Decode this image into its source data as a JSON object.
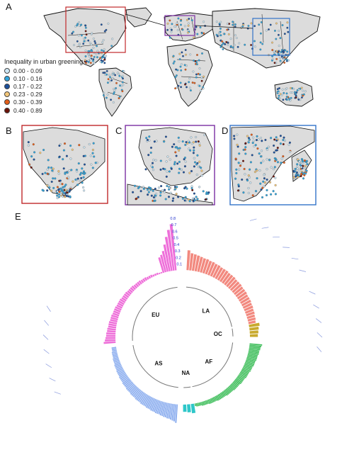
{
  "panel_labels": {
    "A": "A",
    "B": "B",
    "C": "C",
    "D": "D",
    "E": "E"
  },
  "inset_labels": {
    "b": "b",
    "c": "c",
    "d": "d"
  },
  "legend": {
    "title": "Inequality in urban greening",
    "items": [
      {
        "label": "0.00 - 0.09",
        "color": "#cfe8f6"
      },
      {
        "label": "0.10 - 0.16",
        "color": "#2fa4dc"
      },
      {
        "label": "0.17 - 0.22",
        "color": "#1b4f9b"
      },
      {
        "label": "0.23 - 0.29",
        "color": "#f3c77a"
      },
      {
        "label": "0.30 - 0.39",
        "color": "#e45d18"
      },
      {
        "label": "0.40 - 0.89",
        "color": "#6b1208"
      }
    ]
  },
  "chart_data": {
    "type": "bar",
    "layout": "circular",
    "title": "",
    "radial_ticks": [
      "0.1",
      "0.2",
      "0.3",
      "0.4",
      "0.5",
      "0.6",
      "0.7",
      "0.8"
    ],
    "ylim": [
      0,
      0.8
    ],
    "series": [
      {
        "name": "EU",
        "color": "#ee6fd9",
        "values": [
          0.18,
          0.16,
          0.15,
          0.14,
          0.14,
          0.13,
          0.13,
          0.12,
          0.12,
          0.12,
          0.11,
          0.11,
          0.11,
          0.1,
          0.1,
          0.1,
          0.1,
          0.09,
          0.09,
          0.09,
          0.09,
          0.08,
          0.08,
          0.08,
          0.08,
          0.07,
          0.07,
          0.07,
          0.07,
          0.06,
          0.06,
          0.06,
          0.06,
          0.05,
          0.05,
          0.05,
          0.04,
          0.04,
          0.04,
          0.03,
          0.03,
          0.03,
          0.02,
          0.02,
          0.24,
          0.27,
          0.32,
          0.41,
          0.52,
          0.62,
          0.7
        ]
      },
      {
        "name": "LA",
        "color": "#f2897f",
        "values": [
          0.3,
          0.26,
          0.25,
          0.24,
          0.23,
          0.22,
          0.22,
          0.21,
          0.21,
          0.2,
          0.2,
          0.19,
          0.19,
          0.19,
          0.18,
          0.18,
          0.18,
          0.17,
          0.17,
          0.17,
          0.16,
          0.16,
          0.16,
          0.15,
          0.15,
          0.15,
          0.14,
          0.14,
          0.13,
          0.13,
          0.12,
          0.12,
          0.11
        ]
      },
      {
        "name": "OC",
        "color": "#c8aa2e",
        "values": [
          0.16,
          0.14,
          0.13,
          0.12
        ]
      },
      {
        "name": "AF",
        "color": "#3fbe5b",
        "values": [
          0.19,
          0.18,
          0.17,
          0.17,
          0.16,
          0.16,
          0.16,
          0.15,
          0.15,
          0.15,
          0.15,
          0.14,
          0.14,
          0.14,
          0.14,
          0.13,
          0.13,
          0.13,
          0.13,
          0.12,
          0.12,
          0.12,
          0.12,
          0.12,
          0.11,
          0.11,
          0.11,
          0.11,
          0.11,
          0.1,
          0.1,
          0.1,
          0.1,
          0.1,
          0.1,
          0.09,
          0.09,
          0.09,
          0.09,
          0.09,
          0.09,
          0.08,
          0.08,
          0.08,
          0.08,
          0.08,
          0.08,
          0.08,
          0.07,
          0.07,
          0.07,
          0.07,
          0.07,
          0.07,
          0.06,
          0.06,
          0.06,
          0.06,
          0.06,
          0.05,
          0.05,
          0.05,
          0.05,
          0.04
        ]
      },
      {
        "name": "NA",
        "color": "#2ec7c9",
        "values": [
          0.14,
          0.12,
          0.11
        ]
      },
      {
        "name": "AS",
        "color": "#8fb0ef",
        "values": [
          0.28,
          0.26,
          0.25,
          0.24,
          0.23,
          0.23,
          0.22,
          0.22,
          0.21,
          0.21,
          0.2,
          0.2,
          0.2,
          0.19,
          0.19,
          0.19,
          0.18,
          0.18,
          0.18,
          0.17,
          0.17,
          0.17,
          0.17,
          0.16,
          0.16,
          0.16,
          0.16,
          0.15,
          0.15,
          0.15,
          0.15,
          0.14,
          0.14,
          0.14,
          0.14,
          0.13,
          0.13,
          0.13,
          0.13,
          0.12,
          0.12,
          0.12,
          0.12,
          0.11,
          0.11,
          0.11,
          0.11,
          0.1,
          0.1,
          0.1,
          0.1,
          0.09,
          0.09,
          0.09,
          0.09,
          0.08,
          0.08,
          0.08,
          0.08,
          0.07,
          0.07,
          0.07
        ]
      }
    ]
  }
}
